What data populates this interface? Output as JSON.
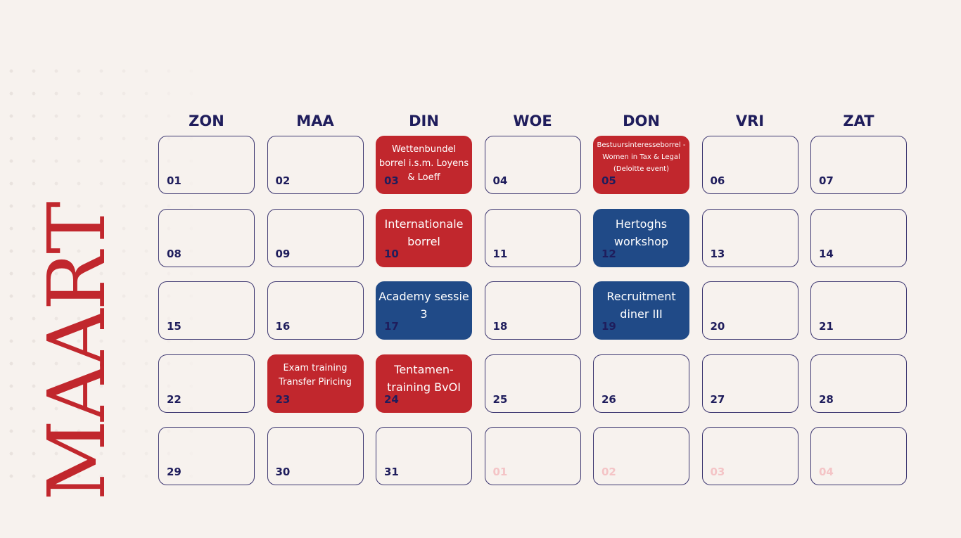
{
  "month": "MAART",
  "colors": {
    "background": "#f7f2ee",
    "accent_red": "#c1272d",
    "accent_blue": "#204a87",
    "navy": "#1f1d5c",
    "faded": "#f4c4c6"
  },
  "weekdays": [
    "ZON",
    "MAA",
    "DIN",
    "WOE",
    "DON",
    "VRI",
    "ZAT"
  ],
  "cells": [
    {
      "num": "01",
      "event": "",
      "color": "none"
    },
    {
      "num": "02",
      "event": "",
      "color": "none"
    },
    {
      "num": "03",
      "event": "Wettenbundel borrel i.s.m. Loyens & Loeff",
      "color": "red"
    },
    {
      "num": "04",
      "event": "",
      "color": "none"
    },
    {
      "num": "05",
      "event": "Bestuursinteresseborrel - Women in Tax & Legal (Deloitte event)",
      "color": "red"
    },
    {
      "num": "06",
      "event": "",
      "color": "none"
    },
    {
      "num": "07",
      "event": "",
      "color": "none"
    },
    {
      "num": "08",
      "event": "",
      "color": "none"
    },
    {
      "num": "09",
      "event": "",
      "color": "none"
    },
    {
      "num": "10",
      "event": "Internationale borrel",
      "color": "red"
    },
    {
      "num": "11",
      "event": "",
      "color": "none"
    },
    {
      "num": "12",
      "event": "Hertoghs workshop",
      "color": "blue"
    },
    {
      "num": "13",
      "event": "",
      "color": "none"
    },
    {
      "num": "14",
      "event": "",
      "color": "none"
    },
    {
      "num": "15",
      "event": "",
      "color": "none"
    },
    {
      "num": "16",
      "event": "",
      "color": "none"
    },
    {
      "num": "17",
      "event": "Academy sessie 3",
      "color": "blue"
    },
    {
      "num": "18",
      "event": "",
      "color": "none"
    },
    {
      "num": "19",
      "event": "Recruitment diner III",
      "color": "blue"
    },
    {
      "num": "20",
      "event": "",
      "color": "none"
    },
    {
      "num": "21",
      "event": "",
      "color": "none"
    },
    {
      "num": "22",
      "event": "",
      "color": "none"
    },
    {
      "num": "23",
      "event": "Exam training Transfer Piricing",
      "color": "red"
    },
    {
      "num": "24",
      "event": "Tentamen-training BvOI",
      "color": "red"
    },
    {
      "num": "25",
      "event": "",
      "color": "none"
    },
    {
      "num": "26",
      "event": "",
      "color": "none"
    },
    {
      "num": "27",
      "event": "",
      "color": "none"
    },
    {
      "num": "28",
      "event": "",
      "color": "none"
    },
    {
      "num": "29",
      "event": "",
      "color": "none"
    },
    {
      "num": "30",
      "event": "",
      "color": "none"
    },
    {
      "num": "31",
      "event": "",
      "color": "none"
    },
    {
      "num": "01",
      "event": "",
      "color": "faded"
    },
    {
      "num": "02",
      "event": "",
      "color": "faded"
    },
    {
      "num": "03",
      "event": "",
      "color": "faded"
    },
    {
      "num": "04",
      "event": "",
      "color": "faded"
    }
  ]
}
